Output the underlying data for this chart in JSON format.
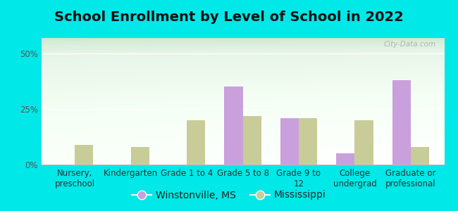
{
  "title": "School Enrollment by Level of School in 2022",
  "categories": [
    "Nursery,\npreschool",
    "Kindergarten",
    "Grade 1 to 4",
    "Grade 5 to 8",
    "Grade 9 to\n12",
    "College\nundergrad",
    "Graduate or\nprofessional"
  ],
  "winstonville": [
    0,
    0,
    0,
    35,
    21,
    5,
    38
  ],
  "mississippi": [
    9,
    8,
    20,
    22,
    21,
    20,
    8
  ],
  "winstonville_color": "#c9a0dc",
  "mississippi_color": "#c8cc99",
  "background_outer": "#00e8e8",
  "yticks": [
    0,
    25,
    50
  ],
  "ylim": [
    0,
    57
  ],
  "watermark": "City-Data.com",
  "legend_winstonville": "Winstonville, MS",
  "legend_mississippi": "Mississippi",
  "title_fontsize": 14,
  "tick_fontsize": 8.5,
  "legend_fontsize": 10
}
